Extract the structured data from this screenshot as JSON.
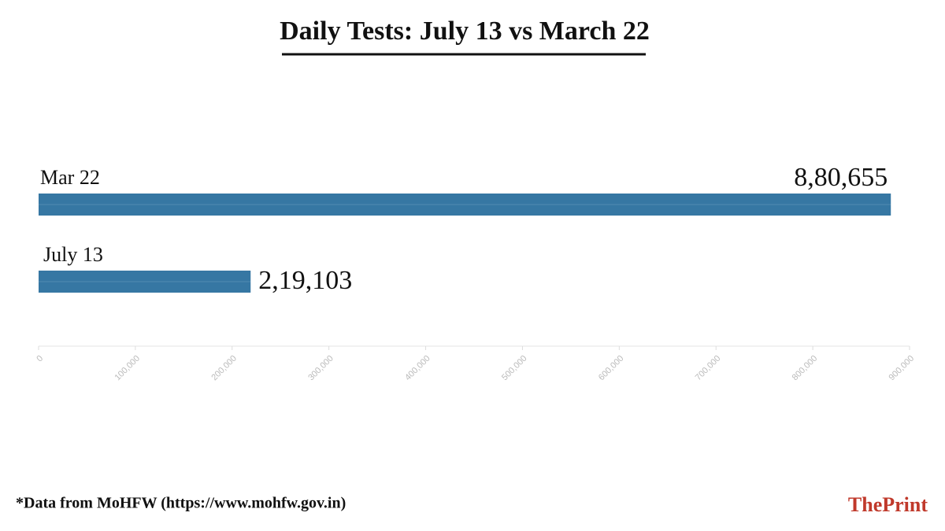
{
  "chart_data": {
    "type": "bar",
    "orientation": "horizontal",
    "title": "Daily Tests:  July 13 vs March 22",
    "categories": [
      "Mar 22",
      "July 13"
    ],
    "values": [
      880655,
      219103
    ],
    "value_labels": [
      "8,80,655",
      "2,19,103"
    ],
    "color": "#3677a3",
    "xlim": [
      0,
      900000
    ],
    "xticks": [
      0,
      {
        "value": 100000,
        "label": "100,000"
      },
      {
        "value": 200000,
        "label": "200,000"
      },
      {
        "value": 300000,
        "label": "300,000"
      },
      {
        "value": 400000,
        "label": "400,000"
      },
      {
        "value": 500000,
        "label": "500,000"
      },
      {
        "value": 600000,
        "label": "600,000"
      },
      {
        "value": 700000,
        "label": "700,000"
      },
      {
        "value": 800000,
        "label": "800,000"
      },
      {
        "value": 900000,
        "label": "900,000"
      }
    ],
    "source": "*Data from MoHFW (https://www.mohfw.gov.in)",
    "logo_prefix": "The",
    "logo_suffix": "Print"
  }
}
